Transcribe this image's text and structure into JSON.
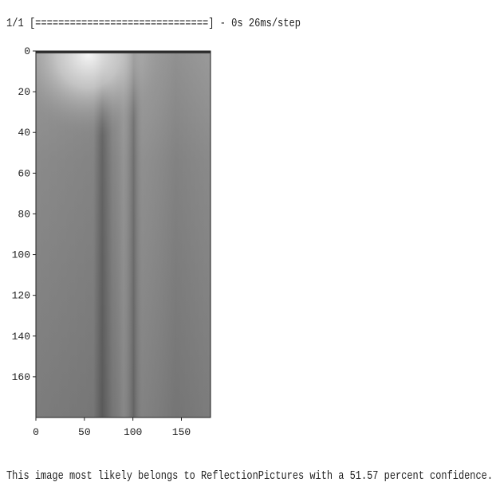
{
  "progress_line": "1/1 [==============================] - 0s 26ms/step",
  "plot": {
    "xlim": [
      0,
      180
    ],
    "ylim": [
      0,
      180
    ],
    "xticks": [
      0,
      50,
      100,
      150
    ],
    "yticks": [
      0,
      20,
      40,
      60,
      80,
      100,
      120,
      140,
      160
    ]
  },
  "result_line": "This image most likely belongs to ReflectionPictures with a 51.57 percent confidence."
}
